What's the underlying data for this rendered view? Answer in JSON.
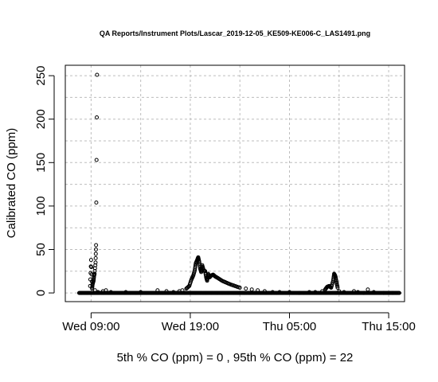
{
  "chart_data": {
    "type": "scatter",
    "title": "QA Reports/Instrument Plots/Lascar_2019-12-05_KE509-KE006-C_LAS1491.png",
    "xlabel": "",
    "ylabel": "Calibrated CO (ppm)",
    "footer": "5th % CO (ppm) =  0 , 95th % CO (ppm)  =  22",
    "x_unit": "hours since Wed 00:00",
    "xlim": [
      6.4,
      40.6
    ],
    "ylim": [
      -10,
      262
    ],
    "x_ticks": [
      {
        "value": 9,
        "label": "Wed 09:00"
      },
      {
        "value": 19,
        "label": "Wed 19:00"
      },
      {
        "value": 29,
        "label": "Thu 05:00"
      },
      {
        "value": 39,
        "label": "Thu 15:00"
      }
    ],
    "y_ticks": [
      0,
      50,
      100,
      150,
      200,
      250
    ],
    "grid": true,
    "marker": "open-circle",
    "series": [
      {
        "name": "",
        "points": [
          [
            8.9,
            8
          ],
          [
            9.0,
            38
          ],
          [
            9.1,
            5
          ],
          [
            9.15,
            10
          ],
          [
            9.25,
            14
          ],
          [
            9.3,
            20
          ],
          [
            9.35,
            22
          ],
          [
            9.45,
            35
          ],
          [
            9.5,
            55
          ],
          [
            9.6,
            251
          ],
          [
            9.4,
            3
          ],
          [
            9.7,
            1
          ],
          [
            10.2,
            2
          ],
          [
            10.5,
            3
          ],
          [
            11.0,
            1
          ],
          [
            12.5,
            1
          ],
          [
            14.0,
            1
          ],
          [
            15.7,
            3
          ],
          [
            16.6,
            2
          ],
          [
            17.3,
            1
          ],
          [
            17.9,
            2
          ],
          [
            18.2,
            3
          ],
          [
            18.6,
            5
          ],
          [
            18.9,
            8
          ],
          [
            19.1,
            15
          ],
          [
            19.3,
            20
          ],
          [
            19.45,
            26
          ],
          [
            19.55,
            34
          ],
          [
            19.7,
            38
          ],
          [
            19.8,
            41
          ],
          [
            19.9,
            36
          ],
          [
            20.0,
            28
          ],
          [
            20.1,
            24
          ],
          [
            20.2,
            32
          ],
          [
            20.35,
            26
          ],
          [
            20.5,
            25
          ],
          [
            20.6,
            18
          ],
          [
            20.7,
            14
          ],
          [
            20.8,
            22
          ],
          [
            20.95,
            18
          ],
          [
            21.1,
            20
          ],
          [
            21.3,
            21
          ],
          [
            21.5,
            19
          ],
          [
            21.8,
            17
          ],
          [
            22.2,
            14
          ],
          [
            22.6,
            12
          ],
          [
            23.0,
            10
          ],
          [
            23.5,
            8
          ],
          [
            24.0,
            6
          ],
          [
            24.6,
            5
          ],
          [
            25.2,
            4
          ],
          [
            25.8,
            3
          ],
          [
            26.5,
            2
          ],
          [
            27.3,
            1
          ],
          [
            28.0,
            1
          ],
          [
            29.0,
            1
          ],
          [
            30.0,
            0
          ],
          [
            31.0,
            1
          ],
          [
            31.6,
            1
          ],
          [
            32.3,
            2
          ],
          [
            32.6,
            4
          ],
          [
            32.8,
            7
          ],
          [
            33.0,
            8
          ],
          [
            33.2,
            6
          ],
          [
            33.4,
            14
          ],
          [
            33.5,
            22
          ],
          [
            33.6,
            20
          ],
          [
            33.65,
            18
          ],
          [
            33.75,
            12
          ],
          [
            33.85,
            6
          ],
          [
            34.0,
            2
          ],
          [
            34.5,
            1
          ],
          [
            35.5,
            2
          ],
          [
            35.9,
            1
          ],
          [
            36.5,
            0
          ],
          [
            36.9,
            4
          ],
          [
            37.5,
            1
          ],
          [
            38.5,
            0
          ],
          [
            39.4,
            0
          ]
        ],
        "flat_segments": [
          [
            7.8,
            40.1,
            0
          ]
        ]
      }
    ]
  }
}
